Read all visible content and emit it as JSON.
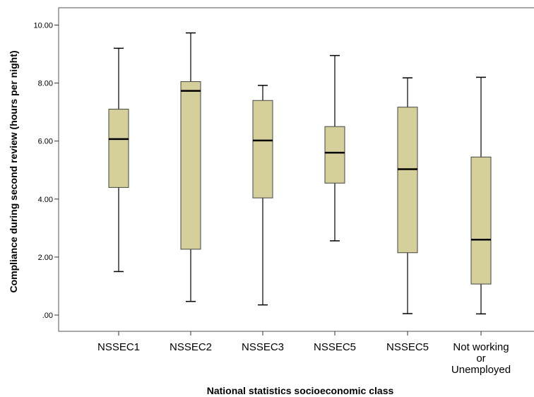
{
  "chart_data": {
    "type": "boxplot",
    "xlabel": "National statistics socioeconomic class",
    "ylabel": "Compliance during second review (hours per night)",
    "ylim": [
      -0.3,
      10.6
    ],
    "yticks": [
      {
        "value": 0,
        "label": ".00"
      },
      {
        "value": 2,
        "label": "2.00"
      },
      {
        "value": 4,
        "label": "4.00"
      },
      {
        "value": 6,
        "label": "6.00"
      },
      {
        "value": 8,
        "label": "8.00"
      },
      {
        "value": 10,
        "label": "10.00"
      }
    ],
    "categories": [
      {
        "label": [
          "NSSEC1"
        ],
        "min": 1.5,
        "q1": 4.4,
        "median": 6.07,
        "q3": 7.1,
        "max": 9.2
      },
      {
        "label": [
          "NSSEC2"
        ],
        "min": 0.47,
        "q1": 2.27,
        "median": 7.73,
        "q3": 8.05,
        "max": 9.73
      },
      {
        "label": [
          "NSSEC3"
        ],
        "min": 0.35,
        "q1": 4.04,
        "median": 6.02,
        "q3": 7.4,
        "max": 7.92
      },
      {
        "label": [
          "NSSEC5"
        ],
        "min": 2.56,
        "q1": 4.55,
        "median": 5.6,
        "q3": 6.5,
        "max": 8.95
      },
      {
        "label": [
          "NSSEC5"
        ],
        "min": 0.05,
        "q1": 2.15,
        "median": 5.03,
        "q3": 7.17,
        "max": 8.18
      },
      {
        "label": [
          "Not working",
          "or",
          "Unemployed"
        ],
        "min": 0.04,
        "q1": 1.07,
        "median": 2.6,
        "q3": 5.45,
        "max": 8.2
      }
    ],
    "box_color": "#d5d09b",
    "grid": false
  }
}
